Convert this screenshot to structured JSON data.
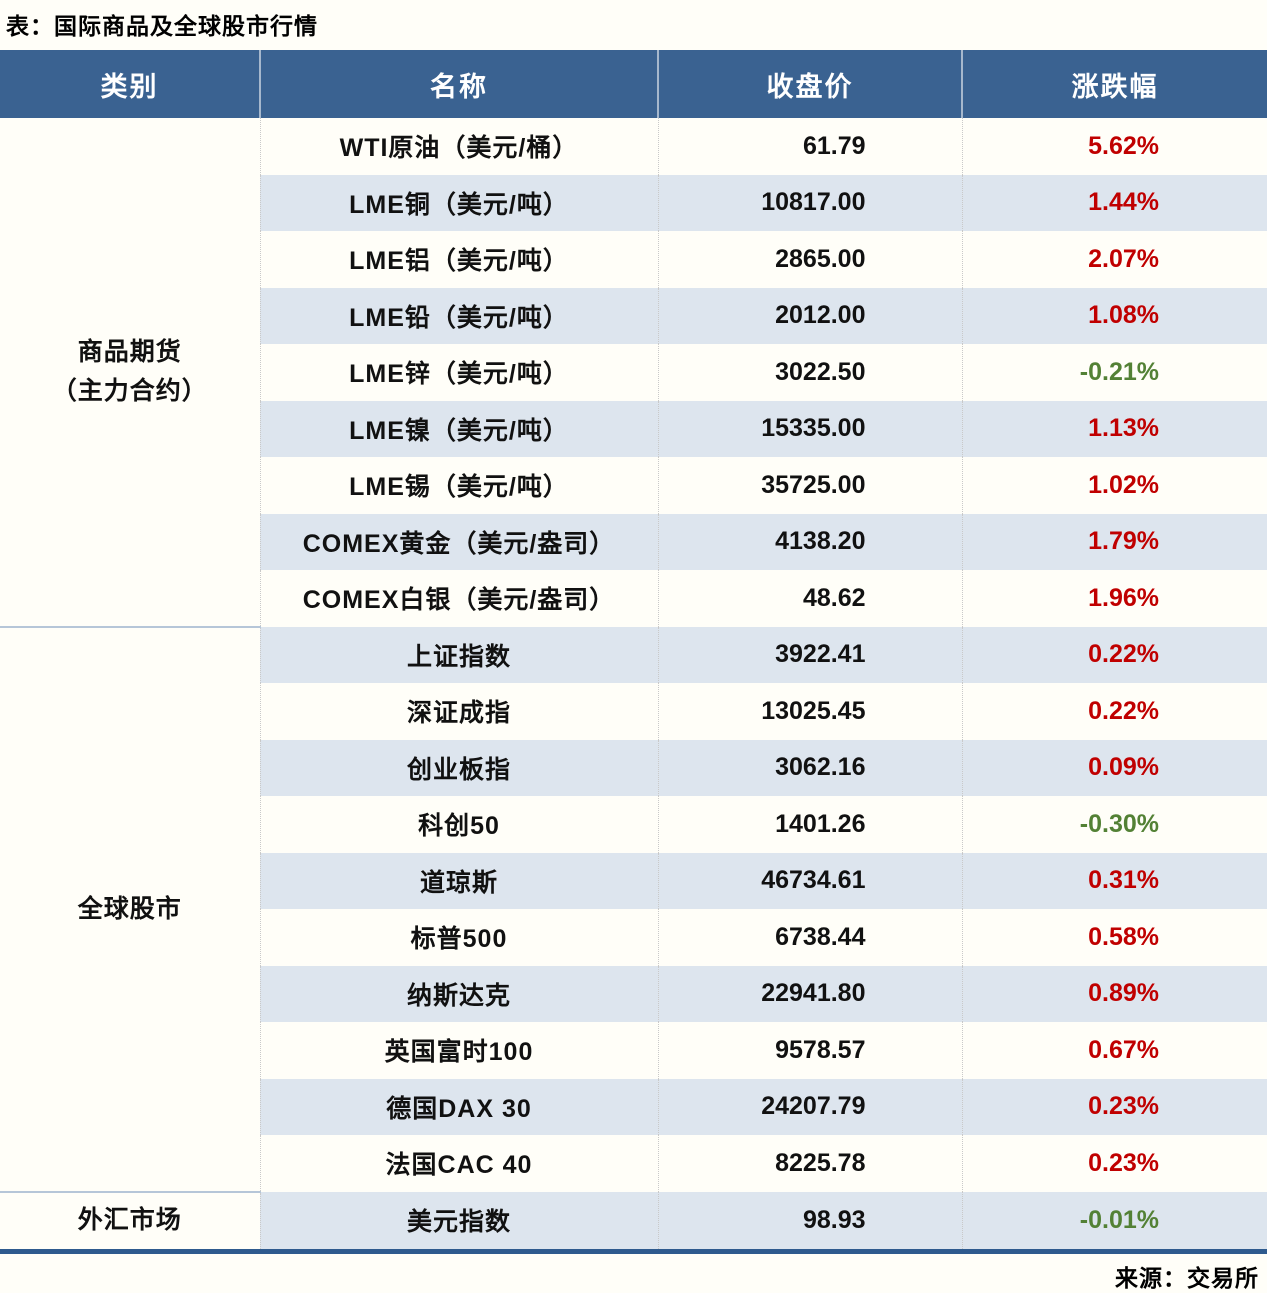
{
  "title": "表：国际商品及全球股市行情",
  "source": "来源：交易所",
  "colors": {
    "header_bg": "#3a6291",
    "stripe": "#dde5ee",
    "up_red": "#c00000",
    "down_green": "#538135",
    "table_bottom_border": "#2e5a8e",
    "group_divider": "#b6c6d8",
    "page_bg": "#fffef8"
  },
  "table": {
    "columns": [
      "类别",
      "名称",
      "收盘价",
      "涨跌幅"
    ],
    "groups": [
      {
        "category": "商品期货\n（主力合约）",
        "rows": [
          {
            "name": "WTI原油（美元/桶）",
            "close": "61.79",
            "change": "5.62%",
            "direction": "up"
          },
          {
            "name": "LME铜（美元/吨）",
            "close": "10817.00",
            "change": "1.44%",
            "direction": "up"
          },
          {
            "name": "LME铝（美元/吨）",
            "close": "2865.00",
            "change": "2.07%",
            "direction": "up"
          },
          {
            "name": "LME铅（美元/吨）",
            "close": "2012.00",
            "change": "1.08%",
            "direction": "up"
          },
          {
            "name": "LME锌（美元/吨）",
            "close": "3022.50",
            "change": "-0.21%",
            "direction": "down"
          },
          {
            "name": "LME镍（美元/吨）",
            "close": "15335.00",
            "change": "1.13%",
            "direction": "up"
          },
          {
            "name": "LME锡（美元/吨）",
            "close": "35725.00",
            "change": "1.02%",
            "direction": "up"
          },
          {
            "name": "COMEX黄金（美元/盎司）",
            "close": "4138.20",
            "change": "1.79%",
            "direction": "up"
          },
          {
            "name": "COMEX白银（美元/盎司）",
            "close": "48.62",
            "change": "1.96%",
            "direction": "up"
          }
        ]
      },
      {
        "category": "全球股市",
        "rows": [
          {
            "name": "上证指数",
            "close": "3922.41",
            "change": "0.22%",
            "direction": "up"
          },
          {
            "name": "深证成指",
            "close": "13025.45",
            "change": "0.22%",
            "direction": "up"
          },
          {
            "name": "创业板指",
            "close": "3062.16",
            "change": "0.09%",
            "direction": "up"
          },
          {
            "name": "科创50",
            "close": "1401.26",
            "change": "-0.30%",
            "direction": "down"
          },
          {
            "name": "道琼斯",
            "close": "46734.61",
            "change": "0.31%",
            "direction": "up"
          },
          {
            "name": "标普500",
            "close": "6738.44",
            "change": "0.58%",
            "diredirection": "up",
            "direction": "up"
          },
          {
            "name": "纳斯达克",
            "close": "22941.80",
            "change": "0.89%",
            "direction": "up"
          },
          {
            "name": "英国富时100",
            "close": "9578.57",
            "change": "0.67%",
            "direction": "up"
          },
          {
            "name": "德国DAX 30",
            "close": "24207.79",
            "change": "0.23%",
            "direction": "up"
          },
          {
            "name": "法国CAC 40",
            "close": "8225.78",
            "change": "0.23%",
            "direction": "up"
          }
        ]
      },
      {
        "category": "外汇市场",
        "rows": [
          {
            "name": "美元指数",
            "close": "98.93",
            "change": "-0.01%",
            "direction": "down"
          }
        ]
      }
    ]
  }
}
